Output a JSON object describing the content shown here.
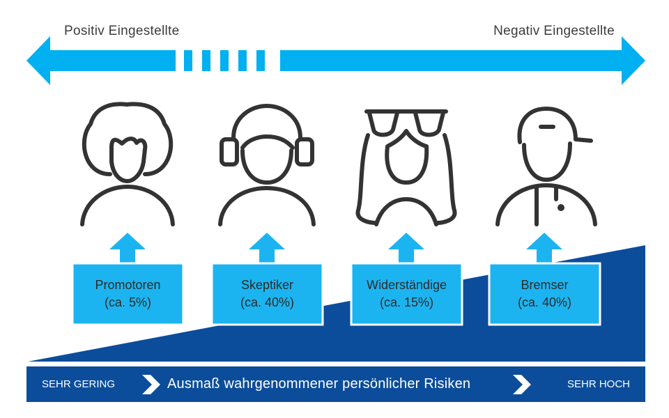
{
  "scale": {
    "left_label": "Positiv Eingestellte",
    "right_label": "Negativ Eingestellte"
  },
  "groups": [
    {
      "name": "Promotoren",
      "share": "(ca. 5%)",
      "icon": "curly-hair-person-icon"
    },
    {
      "name": "Skeptiker",
      "share": "(ca. 40%)",
      "icon": "headphones-person-icon"
    },
    {
      "name": "Widerständige",
      "share": "(ca. 15%)",
      "icon": "sunglasses-long-hair-person-icon"
    },
    {
      "name": "Bremser",
      "share": "(ca. 40%)",
      "icon": "cap-person-icon"
    }
  ],
  "risk_bar": {
    "low": "SEHR GERING",
    "title": "Ausmaß wahrgenommener persönlicher Risiken",
    "high": "SEHR HOCH"
  },
  "colors": {
    "arrow": "#00b0f0",
    "box": "#1cb4f0",
    "navy": "#0b4d9b",
    "icon_stroke": "#333333"
  }
}
